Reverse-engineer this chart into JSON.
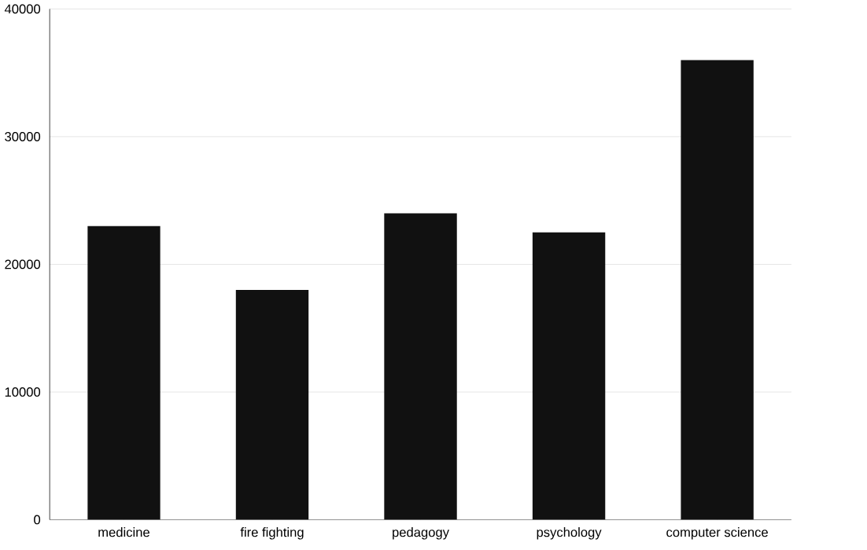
{
  "chart_data": {
    "type": "bar",
    "categories": [
      "medicine",
      "fire fighting",
      "pedagogy",
      "psychology",
      "computer science"
    ],
    "values": [
      23000,
      18000,
      24000,
      22500,
      36000
    ],
    "color": "#111111",
    "ylim": [
      0,
      40000
    ],
    "yticks": [
      0,
      10000,
      20000,
      30000,
      40000
    ],
    "grid": "y"
  }
}
